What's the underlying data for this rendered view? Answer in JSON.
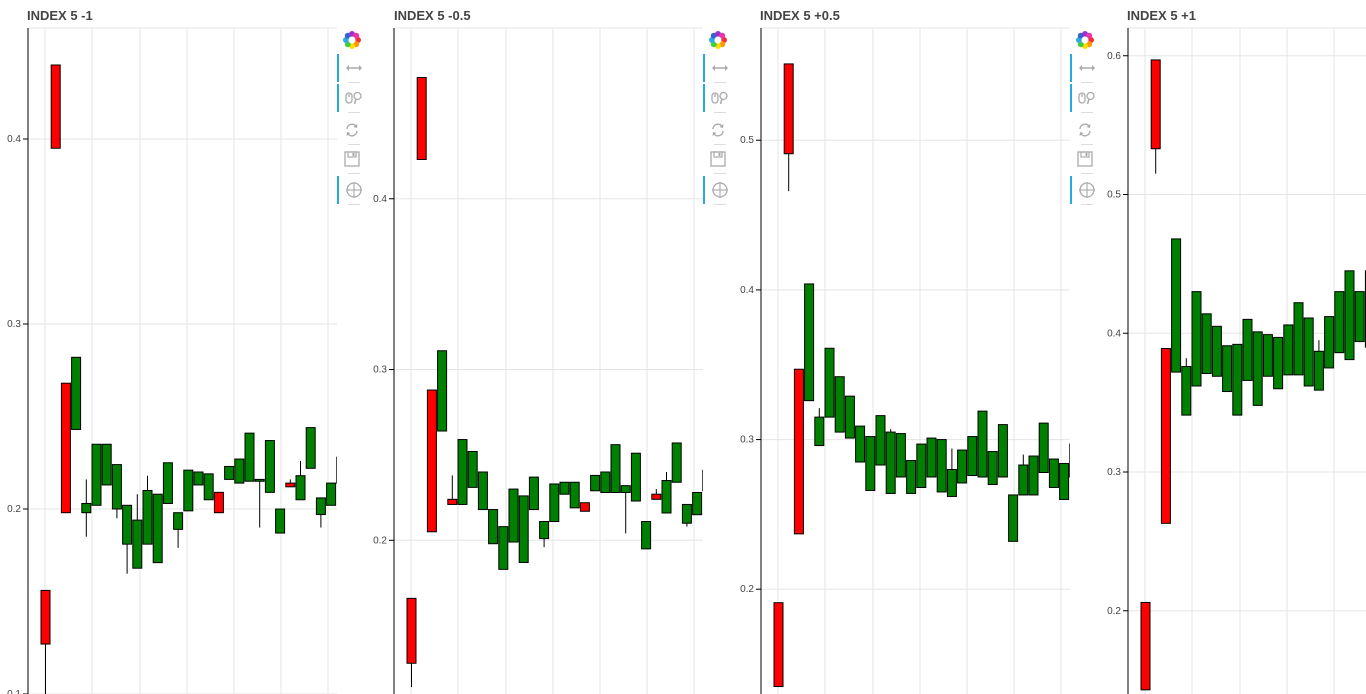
{
  "colors": {
    "up": "#008000",
    "down": "#ff0000",
    "grid": "#e5e5e5",
    "axis": "#000000",
    "tool_active": "#26aae1"
  },
  "toolbar": {
    "tools": [
      {
        "name": "bokeh-logo-icon",
        "active": false
      },
      {
        "name": "pan-icon",
        "active": true
      },
      {
        "name": "wheel-zoom-icon",
        "active": true
      },
      {
        "name": "reset-icon",
        "active": false
      },
      {
        "name": "save-icon",
        "active": false
      },
      {
        "name": "crosshair-icon",
        "active": true
      }
    ]
  },
  "chart_data": [
    {
      "type": "candlestick",
      "title": "INDEX 5 -1",
      "ylim": [
        0.1,
        0.46
      ],
      "yticks": [
        0.1,
        0.2,
        0.3,
        0.4
      ],
      "ytick_labels": [
        "0.1",
        "0.2",
        "0.3",
        "0.4"
      ],
      "grid": true,
      "candles": [
        {
          "o": 0.156,
          "c": 0.127,
          "h": 0.156,
          "l": 0.1
        },
        {
          "o": 0.44,
          "c": 0.395,
          "h": 0.44,
          "l": 0.395
        },
        {
          "o": 0.268,
          "c": 0.198,
          "h": 0.268,
          "l": 0.198
        },
        {
          "o": 0.243,
          "c": 0.282,
          "h": 0.282,
          "l": 0.243
        },
        {
          "o": 0.198,
          "c": 0.203,
          "h": 0.216,
          "l": 0.185
        },
        {
          "o": 0.202,
          "c": 0.235,
          "h": 0.235,
          "l": 0.202
        },
        {
          "o": 0.213,
          "c": 0.235,
          "h": 0.235,
          "l": 0.213
        },
        {
          "o": 0.2,
          "c": 0.224,
          "h": 0.224,
          "l": 0.195
        },
        {
          "o": 0.181,
          "c": 0.202,
          "h": 0.202,
          "l": 0.165
        },
        {
          "o": 0.168,
          "c": 0.194,
          "h": 0.208,
          "l": 0.168
        },
        {
          "o": 0.181,
          "c": 0.21,
          "h": 0.218,
          "l": 0.181
        },
        {
          "o": 0.171,
          "c": 0.208,
          "h": 0.208,
          "l": 0.171
        },
        {
          "o": 0.203,
          "c": 0.225,
          "h": 0.225,
          "l": 0.203
        },
        {
          "o": 0.189,
          "c": 0.198,
          "h": 0.198,
          "l": 0.179
        },
        {
          "o": 0.199,
          "c": 0.221,
          "h": 0.221,
          "l": 0.199
        },
        {
          "o": 0.213,
          "c": 0.22,
          "h": 0.22,
          "l": 0.213
        },
        {
          "o": 0.205,
          "c": 0.219,
          "h": 0.219,
          "l": 0.205
        },
        {
          "o": 0.209,
          "c": 0.198,
          "h": 0.209,
          "l": 0.198
        },
        {
          "o": 0.216,
          "c": 0.223,
          "h": 0.223,
          "l": 0.216
        },
        {
          "o": 0.214,
          "c": 0.227,
          "h": 0.227,
          "l": 0.214
        },
        {
          "o": 0.215,
          "c": 0.241,
          "h": 0.241,
          "l": 0.215
        },
        {
          "o": 0.215,
          "c": 0.216,
          "h": 0.216,
          "l": 0.19
        },
        {
          "o": 0.209,
          "c": 0.237,
          "h": 0.237,
          "l": 0.209
        },
        {
          "o": 0.187,
          "c": 0.2,
          "h": 0.2,
          "l": 0.187
        },
        {
          "o": 0.214,
          "c": 0.212,
          "h": 0.216,
          "l": 0.212
        },
        {
          "o": 0.205,
          "c": 0.218,
          "h": 0.226,
          "l": 0.205
        },
        {
          "o": 0.222,
          "c": 0.244,
          "h": 0.244,
          "l": 0.222
        },
        {
          "o": 0.197,
          "c": 0.206,
          "h": 0.206,
          "l": 0.19
        },
        {
          "o": 0.202,
          "c": 0.214,
          "h": 0.214,
          "l": 0.202
        },
        {
          "o": 0.214,
          "c": 0.228,
          "h": 0.237,
          "l": 0.214
        }
      ]
    },
    {
      "type": "candlestick",
      "title": "INDEX 5 -0.5",
      "ylim": [
        0.11,
        0.5
      ],
      "yticks": [
        0.2,
        0.3,
        0.4
      ],
      "ytick_labels": [
        "0.2",
        "0.3",
        "0.4"
      ],
      "grid": true,
      "candles": [
        {
          "o": 0.166,
          "c": 0.128,
          "h": 0.166,
          "l": 0.114
        },
        {
          "o": 0.471,
          "c": 0.423,
          "h": 0.471,
          "l": 0.423
        },
        {
          "o": 0.288,
          "c": 0.205,
          "h": 0.288,
          "l": 0.205
        },
        {
          "o": 0.264,
          "c": 0.311,
          "h": 0.311,
          "l": 0.264
        },
        {
          "o": 0.224,
          "c": 0.221,
          "h": 0.238,
          "l": 0.221
        },
        {
          "o": 0.221,
          "c": 0.259,
          "h": 0.259,
          "l": 0.221
        },
        {
          "o": 0.231,
          "c": 0.252,
          "h": 0.252,
          "l": 0.231
        },
        {
          "o": 0.218,
          "c": 0.24,
          "h": 0.24,
          "l": 0.218
        },
        {
          "o": 0.198,
          "c": 0.218,
          "h": 0.218,
          "l": 0.198
        },
        {
          "o": 0.183,
          "c": 0.208,
          "h": 0.208,
          "l": 0.183
        },
        {
          "o": 0.199,
          "c": 0.23,
          "h": 0.23,
          "l": 0.199
        },
        {
          "o": 0.187,
          "c": 0.226,
          "h": 0.226,
          "l": 0.187
        },
        {
          "o": 0.218,
          "c": 0.237,
          "h": 0.237,
          "l": 0.218
        },
        {
          "o": 0.201,
          "c": 0.211,
          "h": 0.211,
          "l": 0.196
        },
        {
          "o": 0.211,
          "c": 0.233,
          "h": 0.233,
          "l": 0.211
        },
        {
          "o": 0.227,
          "c": 0.234,
          "h": 0.234,
          "l": 0.227
        },
        {
          "o": 0.219,
          "c": 0.234,
          "h": 0.234,
          "l": 0.219
        },
        {
          "o": 0.222,
          "c": 0.217,
          "h": 0.222,
          "l": 0.217
        },
        {
          "o": 0.229,
          "c": 0.238,
          "h": 0.238,
          "l": 0.229
        },
        {
          "o": 0.228,
          "c": 0.24,
          "h": 0.24,
          "l": 0.228
        },
        {
          "o": 0.228,
          "c": 0.256,
          "h": 0.256,
          "l": 0.228
        },
        {
          "o": 0.228,
          "c": 0.232,
          "h": 0.232,
          "l": 0.204
        },
        {
          "o": 0.223,
          "c": 0.251,
          "h": 0.251,
          "l": 0.223
        },
        {
          "o": 0.195,
          "c": 0.211,
          "h": 0.211,
          "l": 0.195
        },
        {
          "o": 0.227,
          "c": 0.224,
          "h": 0.23,
          "l": 0.224
        },
        {
          "o": 0.216,
          "c": 0.235,
          "h": 0.24,
          "l": 0.216
        },
        {
          "o": 0.234,
          "c": 0.257,
          "h": 0.257,
          "l": 0.234
        },
        {
          "o": 0.21,
          "c": 0.221,
          "h": 0.221,
          "l": 0.208
        },
        {
          "o": 0.215,
          "c": 0.228,
          "h": 0.228,
          "l": 0.215
        },
        {
          "o": 0.229,
          "c": 0.241,
          "h": 0.25,
          "l": 0.229
        }
      ]
    },
    {
      "type": "candlestick",
      "title": "INDEX 5 +0.5",
      "ylim": [
        0.13,
        0.575
      ],
      "yticks": [
        0.2,
        0.3,
        0.4,
        0.5
      ],
      "ytick_labels": [
        "0.2",
        "0.3",
        "0.4",
        "0.5"
      ],
      "grid": true,
      "candles": [
        {
          "o": 0.191,
          "c": 0.135,
          "h": 0.191,
          "l": 0.135
        },
        {
          "o": 0.551,
          "c": 0.491,
          "h": 0.551,
          "l": 0.466
        },
        {
          "o": 0.347,
          "c": 0.237,
          "h": 0.347,
          "l": 0.237
        },
        {
          "o": 0.326,
          "c": 0.404,
          "h": 0.404,
          "l": 0.326
        },
        {
          "o": 0.296,
          "c": 0.315,
          "h": 0.321,
          "l": 0.296
        },
        {
          "o": 0.315,
          "c": 0.361,
          "h": 0.361,
          "l": 0.315
        },
        {
          "o": 0.305,
          "c": 0.342,
          "h": 0.342,
          "l": 0.305
        },
        {
          "o": 0.301,
          "c": 0.329,
          "h": 0.329,
          "l": 0.301
        },
        {
          "o": 0.285,
          "c": 0.309,
          "h": 0.309,
          "l": 0.285
        },
        {
          "o": 0.266,
          "c": 0.302,
          "h": 0.302,
          "l": 0.266
        },
        {
          "o": 0.283,
          "c": 0.316,
          "h": 0.316,
          "l": 0.283
        },
        {
          "o": 0.264,
          "c": 0.305,
          "h": 0.307,
          "l": 0.264
        },
        {
          "o": 0.275,
          "c": 0.304,
          "h": 0.304,
          "l": 0.275
        },
        {
          "o": 0.264,
          "c": 0.286,
          "h": 0.286,
          "l": 0.264
        },
        {
          "o": 0.268,
          "c": 0.297,
          "h": 0.297,
          "l": 0.268
        },
        {
          "o": 0.275,
          "c": 0.301,
          "h": 0.301,
          "l": 0.275
        },
        {
          "o": 0.265,
          "c": 0.3,
          "h": 0.3,
          "l": 0.265
        },
        {
          "o": 0.262,
          "c": 0.28,
          "h": 0.294,
          "l": 0.262
        },
        {
          "o": 0.271,
          "c": 0.293,
          "h": 0.293,
          "l": 0.271
        },
        {
          "o": 0.276,
          "c": 0.302,
          "h": 0.302,
          "l": 0.276
        },
        {
          "o": 0.275,
          "c": 0.319,
          "h": 0.319,
          "l": 0.275
        },
        {
          "o": 0.27,
          "c": 0.292,
          "h": 0.292,
          "l": 0.27
        },
        {
          "o": 0.275,
          "c": 0.31,
          "h": 0.31,
          "l": 0.275
        },
        {
          "o": 0.232,
          "c": 0.263,
          "h": 0.263,
          "l": 0.232
        },
        {
          "o": 0.263,
          "c": 0.283,
          "h": 0.29,
          "l": 0.263
        },
        {
          "o": 0.263,
          "c": 0.289,
          "h": 0.289,
          "l": 0.263
        },
        {
          "o": 0.278,
          "c": 0.311,
          "h": 0.311,
          "l": 0.278
        },
        {
          "o": 0.268,
          "c": 0.287,
          "h": 0.287,
          "l": 0.268
        },
        {
          "o": 0.26,
          "c": 0.284,
          "h": 0.284,
          "l": 0.26
        },
        {
          "o": 0.275,
          "c": 0.297,
          "h": 0.306,
          "l": 0.275
        }
      ]
    },
    {
      "type": "candlestick",
      "title": "INDEX 5 +1",
      "ylim": [
        0.14,
        0.62
      ],
      "yticks": [
        0.2,
        0.3,
        0.4,
        0.5,
        0.6
      ],
      "ytick_labels": [
        "0.2",
        "0.3",
        "0.4",
        "0.5",
        "0.6"
      ],
      "grid": true,
      "candles": [
        {
          "o": 0.206,
          "c": 0.143,
          "h": 0.206,
          "l": 0.143
        },
        {
          "o": 0.597,
          "c": 0.533,
          "h": 0.597,
          "l": 0.515
        },
        {
          "o": 0.389,
          "c": 0.263,
          "h": 0.389,
          "l": 0.263
        },
        {
          "o": 0.372,
          "c": 0.468,
          "h": 0.468,
          "l": 0.372
        },
        {
          "o": 0.341,
          "c": 0.376,
          "h": 0.382,
          "l": 0.341
        },
        {
          "o": 0.362,
          "c": 0.43,
          "h": 0.43,
          "l": 0.362
        },
        {
          "o": 0.371,
          "c": 0.414,
          "h": 0.414,
          "l": 0.371
        },
        {
          "o": 0.369,
          "c": 0.405,
          "h": 0.405,
          "l": 0.369
        },
        {
          "o": 0.358,
          "c": 0.391,
          "h": 0.391,
          "l": 0.358
        },
        {
          "o": 0.341,
          "c": 0.392,
          "h": 0.392,
          "l": 0.341
        },
        {
          "o": 0.366,
          "c": 0.41,
          "h": 0.41,
          "l": 0.366
        },
        {
          "o": 0.348,
          "c": 0.401,
          "h": 0.401,
          "l": 0.348
        },
        {
          "o": 0.369,
          "c": 0.399,
          "h": 0.399,
          "l": 0.369
        },
        {
          "o": 0.36,
          "c": 0.397,
          "h": 0.397,
          "l": 0.36
        },
        {
          "o": 0.37,
          "c": 0.406,
          "h": 0.406,
          "l": 0.37
        },
        {
          "o": 0.37,
          "c": 0.422,
          "h": 0.422,
          "l": 0.37
        },
        {
          "o": 0.362,
          "c": 0.411,
          "h": 0.411,
          "l": 0.362
        },
        {
          "o": 0.359,
          "c": 0.387,
          "h": 0.395,
          "l": 0.359
        },
        {
          "o": 0.375,
          "c": 0.412,
          "h": 0.412,
          "l": 0.375
        },
        {
          "o": 0.386,
          "c": 0.43,
          "h": 0.43,
          "l": 0.386
        },
        {
          "o": 0.381,
          "c": 0.445,
          "h": 0.445,
          "l": 0.381
        },
        {
          "o": 0.394,
          "c": 0.43,
          "h": 0.43,
          "l": 0.394
        },
        {
          "o": 0.39,
          "c": 0.445,
          "h": 0.445,
          "l": 0.39
        },
        {
          "o": 0.357,
          "c": 0.394,
          "h": 0.394,
          "l": 0.357
        }
      ]
    }
  ]
}
